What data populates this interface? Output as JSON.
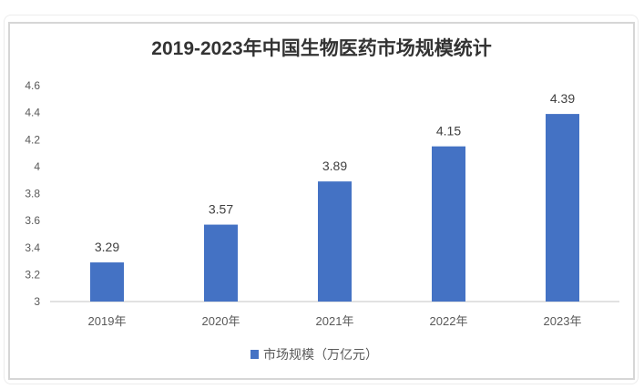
{
  "chart_data": {
    "type": "bar",
    "title": "2019-2023年中国生物医药市场规模统计",
    "categories": [
      "2019年",
      "2020年",
      "2021年",
      "2022年",
      "2023年"
    ],
    "series": [
      {
        "name": "市场规模（万亿元）",
        "values": [
          3.29,
          3.57,
          3.89,
          4.15,
          4.39
        ]
      }
    ],
    "data_labels": [
      "3.29",
      "3.57",
      "3.89",
      "4.15",
      "4.39"
    ],
    "ylim": [
      3,
      4.6
    ],
    "yticks": [
      "3",
      "3.2",
      "3.4",
      "3.6",
      "3.8",
      "4",
      "4.2",
      "4.4",
      "4.6"
    ],
    "xlabel": "",
    "ylabel": "",
    "grid": false,
    "legend": "bottom",
    "bar_color": "#4472c4"
  }
}
